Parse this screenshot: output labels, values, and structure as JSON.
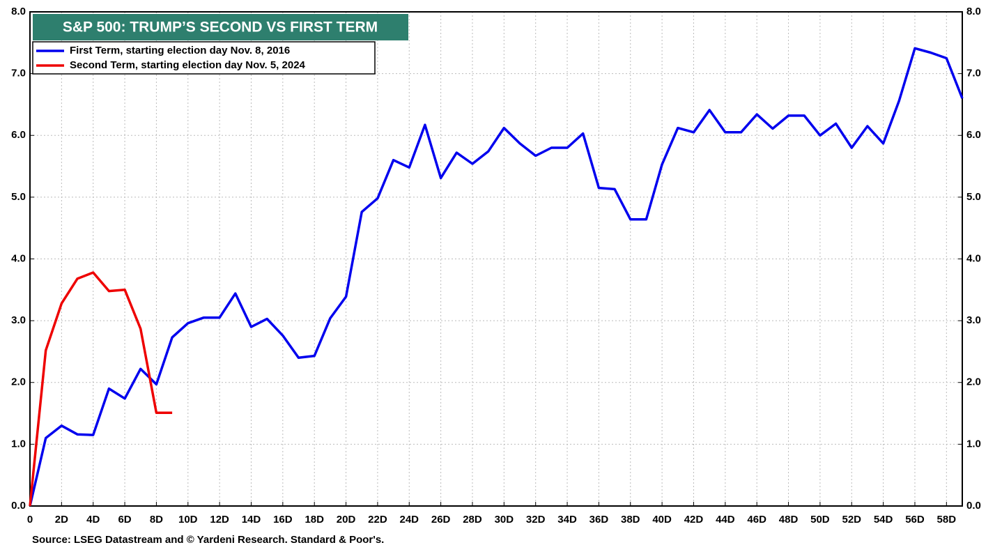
{
  "chart_data": {
    "type": "line",
    "title": "S&P 500: TRUMP’S SECOND VS FIRST TERM",
    "source": "Source: LSEG Datastream and © Yardeni Research. Standard & Poor's.",
    "x": [
      0,
      1,
      2,
      3,
      4,
      5,
      6,
      7,
      8,
      9,
      10,
      11,
      12,
      13,
      14,
      15,
      16,
      17,
      18,
      19,
      20,
      21,
      22,
      23,
      24,
      25,
      26,
      27,
      28,
      29,
      30,
      31,
      32,
      33,
      34,
      35,
      36,
      37,
      38,
      39,
      40,
      41,
      42,
      43,
      44,
      45,
      46,
      47,
      48,
      49,
      50,
      51,
      52,
      53,
      54,
      55,
      56,
      57,
      58,
      59
    ],
    "series": [
      {
        "name": "First Term, starting election day Nov. 8, 2016",
        "color": "#0000ee",
        "values": [
          0,
          1.1,
          1.3,
          1.16,
          1.15,
          1.9,
          1.74,
          2.22,
          1.97,
          2.73,
          2.96,
          3.05,
          3.05,
          3.44,
          2.9,
          3.03,
          2.76,
          2.4,
          2.43,
          3.04,
          3.39,
          4.76,
          4.98,
          5.6,
          5.48,
          6.17,
          5.31,
          5.72,
          5.54,
          5.74,
          6.12,
          5.87,
          5.67,
          5.8,
          5.8,
          6.03,
          5.15,
          5.13,
          4.64,
          4.64,
          5.53,
          6.12,
          6.05,
          6.41,
          6.05,
          6.05,
          6.34,
          6.11,
          6.32,
          6.32,
          6.0,
          6.19,
          5.8,
          6.15,
          5.87,
          6.56,
          7.41,
          7.34,
          7.25,
          6.6
        ]
      },
      {
        "name": "Second Term, starting election day Nov. 5, 2024",
        "color": "#ee0000",
        "values": [
          0,
          2.52,
          3.28,
          3.68,
          3.78,
          3.48,
          3.5,
          2.87,
          1.51,
          1.51,
          null,
          null,
          null,
          null,
          null,
          null,
          null,
          null,
          null,
          null,
          null,
          null,
          null,
          null,
          null,
          null,
          null,
          null,
          null,
          null,
          null,
          null,
          null,
          null,
          null,
          null,
          null,
          null,
          null,
          null,
          null,
          null,
          null,
          null,
          null,
          null,
          null,
          null,
          null,
          null,
          null,
          null,
          null,
          null,
          null,
          null,
          null,
          null,
          null,
          null
        ]
      }
    ],
    "xlim": [
      0,
      59
    ],
    "xticks": [
      0,
      {
        "value": 2,
        "label": "2D"
      },
      {
        "value": 4,
        "label": "4D"
      },
      {
        "value": 6,
        "label": "6D"
      },
      {
        "value": 8,
        "label": "8D"
      },
      {
        "value": 10,
        "label": "10D"
      },
      {
        "value": 12,
        "label": "12D"
      },
      {
        "value": 14,
        "label": "14D"
      },
      {
        "value": 16,
        "label": "16D"
      },
      {
        "value": 18,
        "label": "18D"
      },
      {
        "value": 20,
        "label": "20D"
      },
      {
        "value": 22,
        "label": "22D"
      },
      {
        "value": 24,
        "label": "24D"
      },
      {
        "value": 26,
        "label": "26D"
      },
      {
        "value": 28,
        "label": "28D"
      },
      {
        "value": 30,
        "label": "30D"
      },
      {
        "value": 32,
        "label": "32D"
      },
      {
        "value": 34,
        "label": "34D"
      },
      {
        "value": 36,
        "label": "36D"
      },
      {
        "value": 38,
        "label": "38D"
      },
      {
        "value": 40,
        "label": "40D"
      },
      {
        "value": 42,
        "label": "42D"
      },
      {
        "value": 44,
        "label": "44D"
      },
      {
        "value": 46,
        "label": "46D"
      },
      {
        "value": 48,
        "label": "48D"
      },
      {
        "value": 50,
        "label": "50D"
      },
      {
        "value": 52,
        "label": "52D"
      },
      {
        "value": 54,
        "label": "54D"
      },
      {
        "value": 56,
        "label": "56D"
      },
      {
        "value": 58,
        "label": "58D"
      }
    ],
    "ylim": [
      0,
      8
    ],
    "yticks": [
      {
        "value": 0,
        "label": "0.0"
      },
      {
        "value": 1,
        "label": "1.0"
      },
      {
        "value": 2,
        "label": "2.0"
      },
      {
        "value": 3,
        "label": "3.0"
      },
      {
        "value": 4,
        "label": "4.0"
      },
      {
        "value": 5,
        "label": "5.0"
      },
      {
        "value": 6,
        "label": "6.0"
      },
      {
        "value": 7,
        "label": "7.0"
      },
      {
        "value": 8,
        "label": "8.0"
      }
    ],
    "y2lim": [
      0,
      8
    ],
    "y2ticks": [
      {
        "value": 0,
        "label": "0.0"
      },
      {
        "value": 1,
        "label": "1.0"
      },
      {
        "value": 2,
        "label": "2.0"
      },
      {
        "value": 3,
        "label": "3.0"
      },
      {
        "value": 4,
        "label": "4.0"
      },
      {
        "value": 5,
        "label": "5.0"
      },
      {
        "value": 6,
        "label": "6.0"
      },
      {
        "value": 7,
        "label": "7.0"
      },
      {
        "value": 8,
        "label": "8.0"
      }
    ],
    "grid": true,
    "legend": "top-left",
    "title_background": "#2e7f6e"
  }
}
